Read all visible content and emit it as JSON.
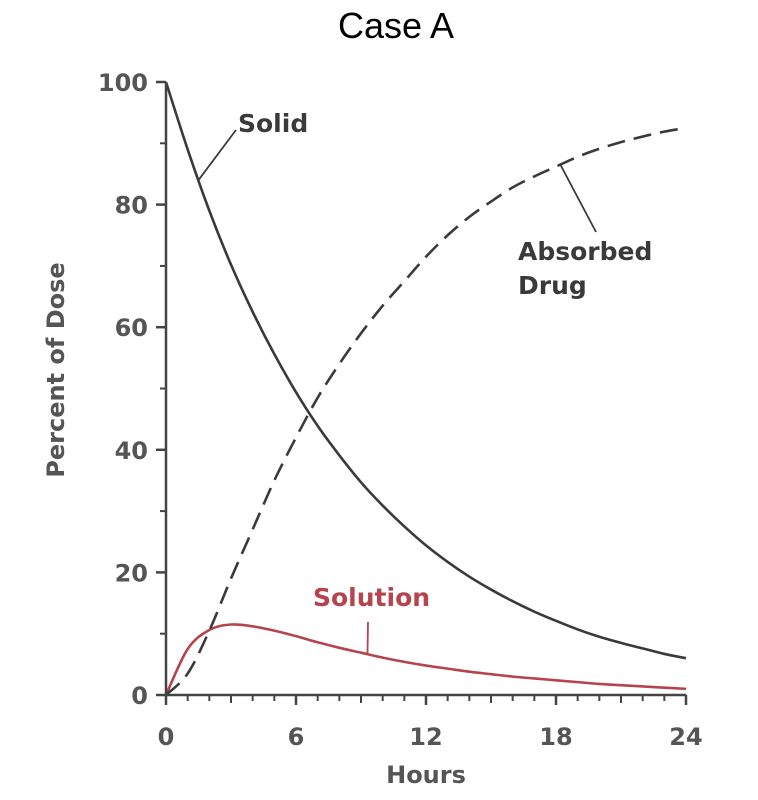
{
  "chart_data": {
    "type": "line",
    "title": "Case A",
    "xlabel": "Hours",
    "ylabel": "Percent of Dose",
    "xlim": [
      0,
      24
    ],
    "ylim": [
      0,
      100
    ],
    "x_ticks": [
      0,
      6,
      12,
      18,
      24
    ],
    "y_ticks": [
      0,
      20,
      40,
      60,
      80,
      100
    ],
    "grid": false,
    "legend": "none",
    "series": [
      {
        "name": "Solid",
        "style": "solid",
        "color": "#3a3a3a",
        "x": [
          0,
          1,
          2,
          3,
          4,
          5,
          6,
          7,
          8,
          9,
          10,
          11,
          12,
          13,
          14,
          15,
          16,
          17,
          18,
          19,
          20,
          21,
          22,
          23,
          24
        ],
        "y": [
          100,
          89,
          79,
          70.2,
          62.5,
          55.6,
          49.4,
          43.9,
          39.1,
          34.7,
          30.9,
          27.5,
          24.4,
          21.7,
          19.3,
          17.2,
          15.3,
          13.6,
          12.1,
          10.7,
          9.5,
          8.5,
          7.6,
          6.7,
          6
        ]
      },
      {
        "name": "Solution",
        "style": "solid",
        "color": "#b5444f",
        "x": [
          0,
          1,
          2,
          3,
          4,
          5,
          6,
          7,
          8,
          9,
          10,
          11,
          12,
          13,
          14,
          15,
          16,
          17,
          18,
          19,
          20,
          21,
          22,
          23,
          24
        ],
        "y": [
          0,
          7.5,
          10.6,
          11.5,
          11.2,
          10.5,
          9.6,
          8.6,
          7.7,
          6.9,
          6.1,
          5.4,
          4.8,
          4.3,
          3.8,
          3.4,
          3.0,
          2.7,
          2.4,
          2.1,
          1.8,
          1.6,
          1.4,
          1.2,
          1.0
        ]
      },
      {
        "name": "Absorbed Drug",
        "style": "dashed",
        "color": "#3a3a3a",
        "x": [
          0,
          1,
          2,
          3,
          4,
          5,
          6,
          7,
          8,
          9,
          10,
          11,
          12,
          13,
          14,
          15,
          16,
          17,
          18,
          19,
          20,
          21,
          22,
          23,
          24
        ],
        "y": [
          0,
          3.5,
          10.5,
          19,
          27,
          35,
          42,
          48.5,
          54,
          59,
          63.5,
          67.5,
          71.5,
          75,
          78,
          80.5,
          82.8,
          84.6,
          86.2,
          87.8,
          89.1,
          90.2,
          91.1,
          91.9,
          92.5
        ]
      }
    ],
    "annotations": [
      {
        "text": "Solid",
        "series": "Solid",
        "line_text": [
          "Solid"
        ],
        "color": "#3a3a3a"
      },
      {
        "text": "Absorbed Drug",
        "series": "Absorbed Drug",
        "line_text": [
          "Absorbed",
          "Drug"
        ],
        "color": "#3a3a3a"
      },
      {
        "text": "Solution",
        "series": "Solution",
        "line_text": [
          "Solution"
        ],
        "color": "#b5444f"
      }
    ]
  }
}
